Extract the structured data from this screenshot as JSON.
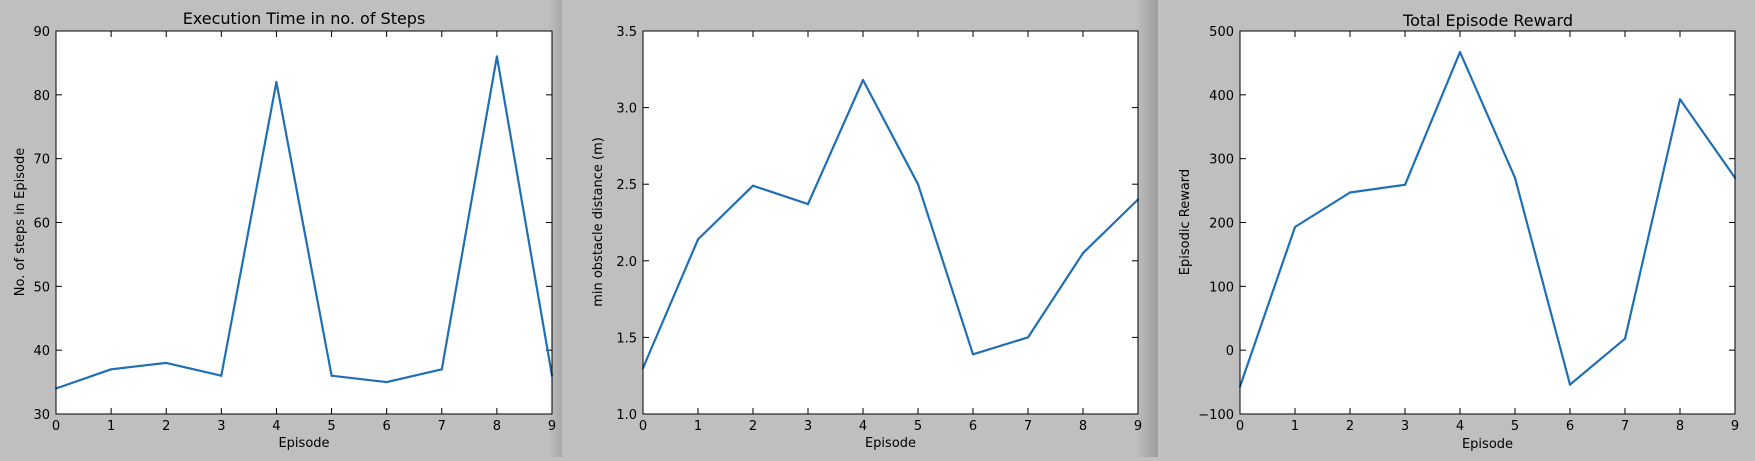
{
  "chart_data": [
    {
      "type": "line",
      "title": "Execution Time in no. of Steps",
      "xlabel": "Episode",
      "ylabel": "No. of steps in Episode",
      "x": [
        0,
        1,
        2,
        3,
        4,
        5,
        6,
        7,
        8,
        9
      ],
      "series": [
        {
          "values": [
            34,
            37,
            38,
            36,
            82,
            36,
            35,
            37,
            86,
            36
          ]
        }
      ],
      "xlim": [
        0,
        9
      ],
      "ylim": [
        30,
        90
      ],
      "xticks": [
        "0",
        "1",
        "2",
        "3",
        "4",
        "5",
        "6",
        "7",
        "8",
        "9"
      ],
      "yticks": [
        "30",
        "40",
        "50",
        "60",
        "70",
        "80",
        "90"
      ],
      "grid": false,
      "line_color": "#1f6fb4"
    },
    {
      "type": "line",
      "title": "",
      "xlabel": "Episode",
      "ylabel": "min obstacle distance (m)",
      "x": [
        0,
        1,
        2,
        3,
        4,
        5,
        6,
        7,
        8,
        9
      ],
      "series": [
        {
          "values": [
            1.3,
            2.14,
            2.49,
            2.37,
            3.18,
            2.5,
            1.39,
            1.5,
            2.05,
            2.4
          ]
        }
      ],
      "xlim": [
        0,
        9
      ],
      "ylim": [
        1.0,
        3.5
      ],
      "xticks": [
        "0",
        "1",
        "2",
        "3",
        "4",
        "5",
        "6",
        "7",
        "8",
        "9"
      ],
      "yticks": [
        "1.0",
        "1.5",
        "2.0",
        "2.5",
        "3.0",
        "3.5"
      ],
      "grid": false,
      "line_color": "#1f6fb4"
    },
    {
      "type": "line",
      "title": "Total Episode Reward",
      "xlabel": "Episode",
      "ylabel": "Episodic Reward",
      "x": [
        0,
        1,
        2,
        3,
        4,
        5,
        6,
        7,
        8,
        9
      ],
      "series": [
        {
          "values": [
            -57,
            193,
            247,
            259,
            467,
            270,
            -54,
            18,
            393,
            270
          ]
        }
      ],
      "xlim": [
        0,
        9
      ],
      "ylim": [
        -100,
        500
      ],
      "xticks": [
        "0",
        "1",
        "2",
        "3",
        "4",
        "5",
        "6",
        "7",
        "8",
        "9"
      ],
      "yticks": [
        "−100",
        "0",
        "100",
        "200",
        "300",
        "400",
        "500"
      ],
      "grid": false,
      "line_color": "#1f6fb4"
    }
  ]
}
